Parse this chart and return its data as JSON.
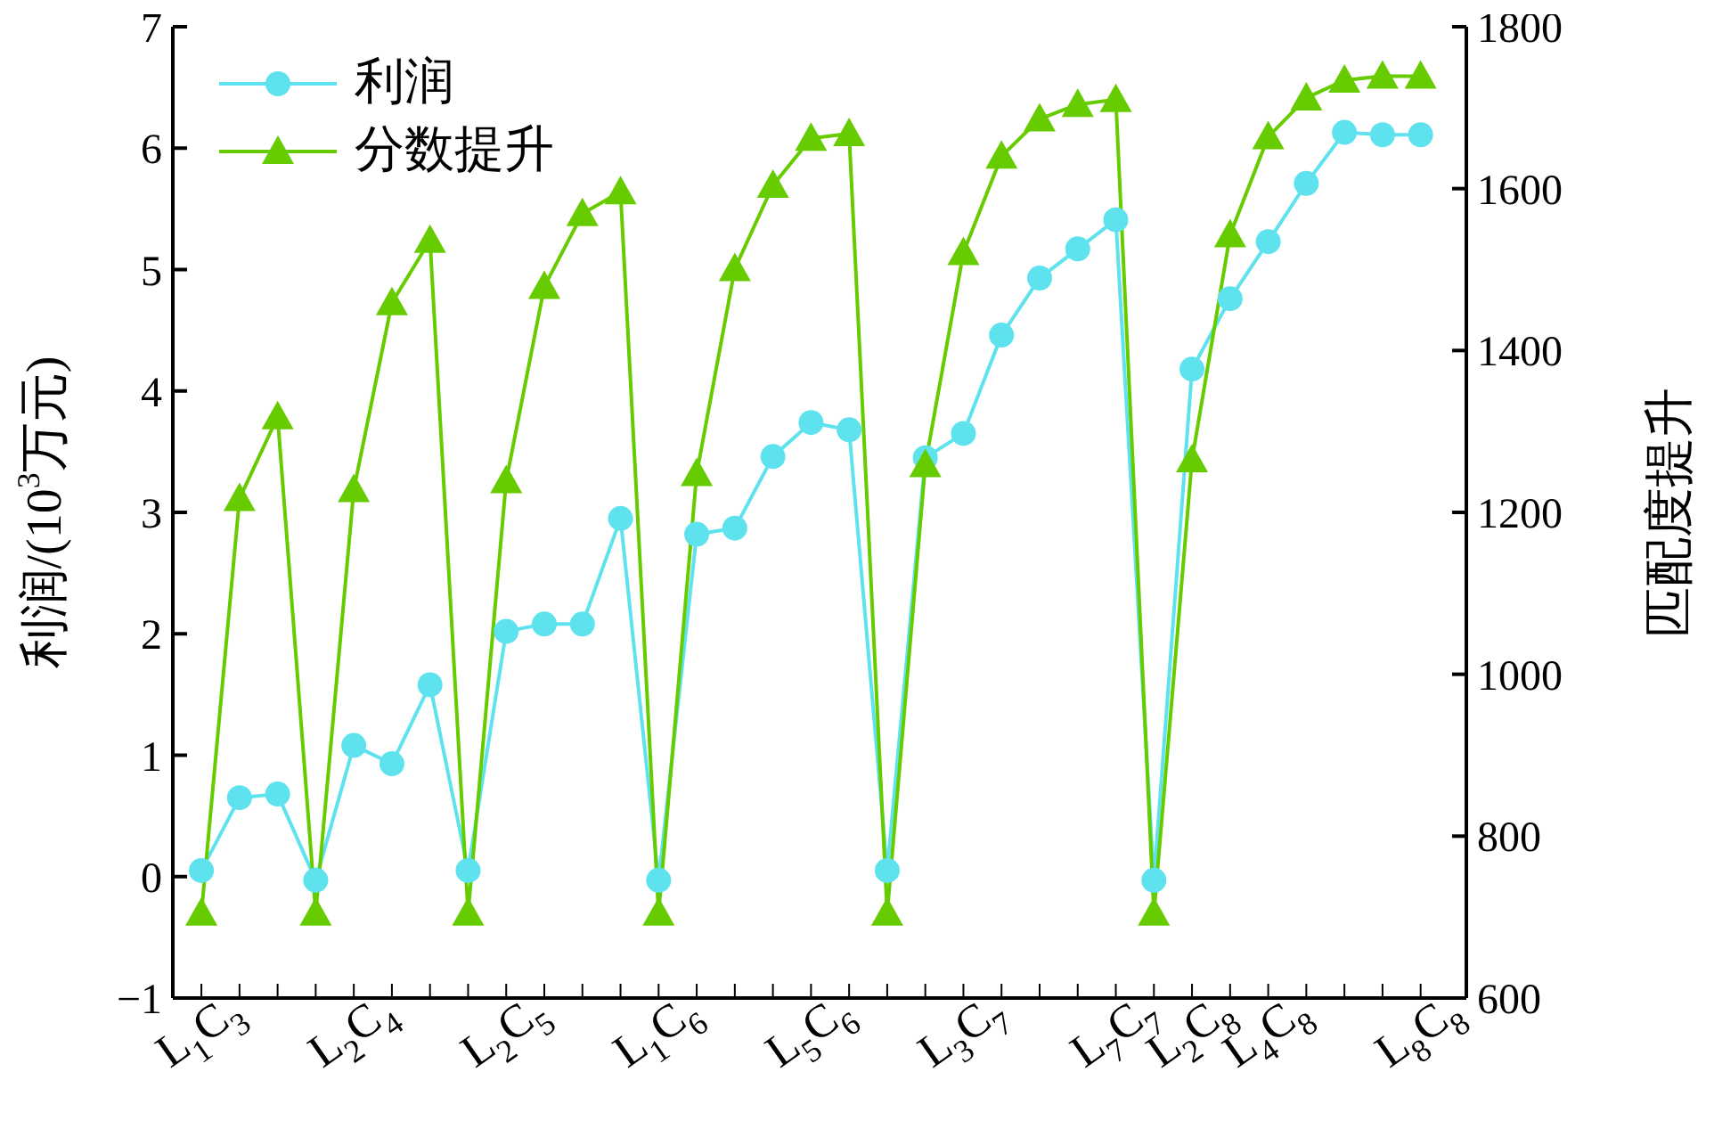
{
  "chart_data": {
    "type": "line",
    "ylabel": "利润/(10$^{3}$万元)",
    "y2label": "匹配度提升",
    "categories": [
      "L$_{1}$C$_{3}$",
      null,
      null,
      null,
      "L$_{2}$C$_{4}$",
      null,
      null,
      null,
      "L$_{2}$C$_{5}$",
      null,
      null,
      null,
      "L$_{1}$C$_{6}$",
      null,
      null,
      null,
      "L$_{5}$C$_{6}$",
      null,
      null,
      null,
      "L$_{3}$C$_{7}$",
      null,
      null,
      null,
      "L$_{7}$C$_{7}$",
      null,
      "L$_{2}$C$_{8}$",
      null,
      "L$_{4}$C$_{8}$",
      null,
      null,
      null,
      "L$_{8}$C$_{8}$"
    ],
    "series": [
      {
        "name": "利润",
        "color": "#5ee3ee",
        "marker": "circle",
        "values": [
          0.05,
          0.65,
          0.68,
          -0.03,
          1.08,
          0.93,
          1.58,
          0.05,
          2.02,
          2.08,
          2.08,
          2.95,
          -0.03,
          2.82,
          2.87,
          3.46,
          3.74,
          3.68,
          0.05,
          3.45,
          3.65,
          4.46,
          4.93,
          5.17,
          5.41,
          -0.03,
          4.18,
          4.76,
          5.23,
          5.71,
          6.13,
          6.11,
          6.11
        ]
      },
      {
        "name": "分数提升",
        "color": "#66cc00",
        "marker": "triangle",
        "axis": "y2",
        "values": [
          705,
          1217,
          1318,
          705,
          1228,
          1459,
          1536,
          705,
          1239,
          1479,
          1569,
          1596,
          705,
          1248,
          1501,
          1604,
          1662,
          1668,
          705,
          1259,
          1521,
          1640,
          1686,
          1704,
          1710,
          705,
          1265,
          1543,
          1664,
          1712,
          1734,
          1739,
          1739
        ]
      }
    ],
    "ylim": [
      -1,
      7
    ],
    "yticks": [
      -1,
      0,
      1,
      2,
      3,
      4,
      5,
      6,
      7
    ],
    "y2lim": [
      600,
      1800
    ],
    "y2ticks": [
      600,
      800,
      1000,
      1200,
      1400,
      1600,
      1800
    ],
    "grid": false,
    "legend": "top left"
  }
}
